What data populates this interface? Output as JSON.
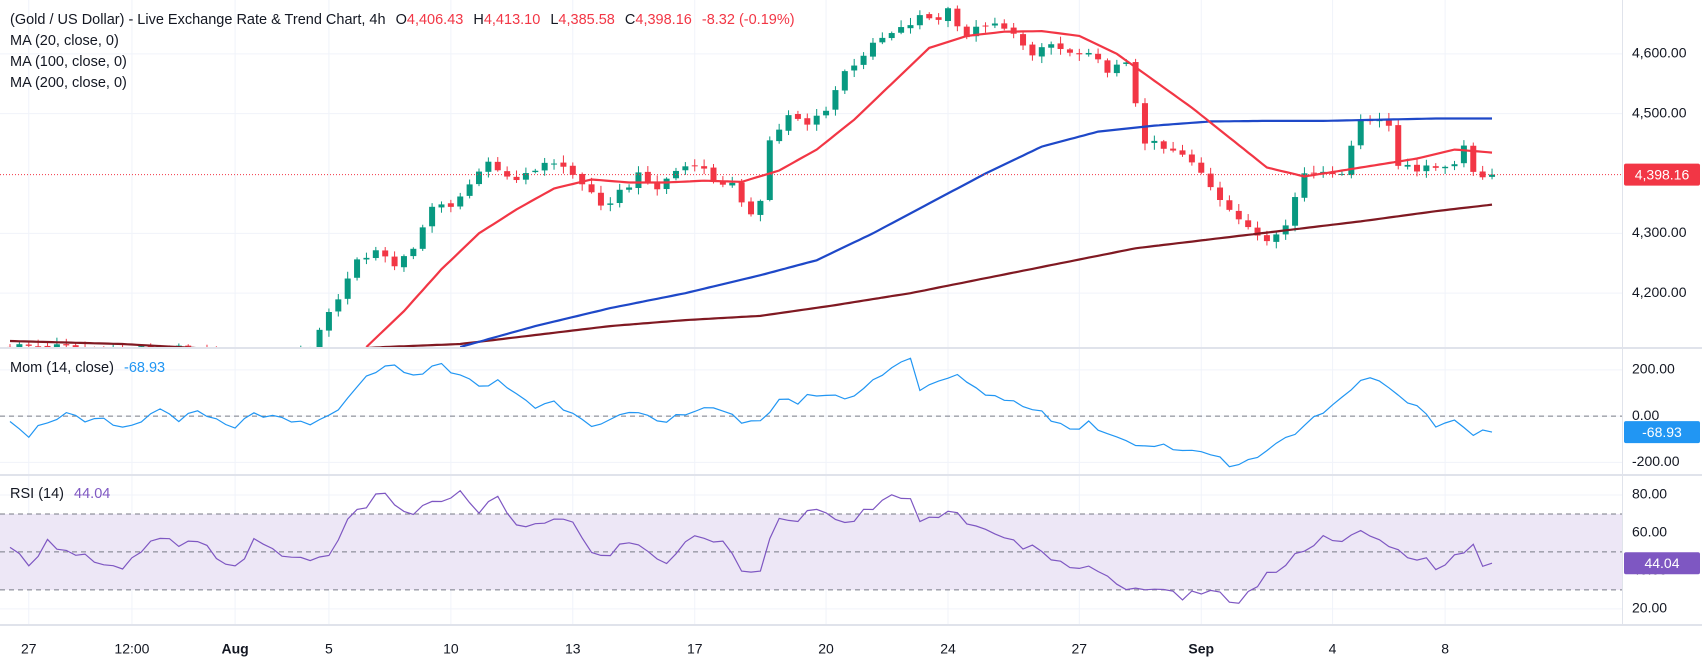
{
  "header": {
    "title": "(Gold / US Dollar) - Live Exchange Rate & Trend Chart, 4h",
    "o_label": "O",
    "o": "4,406.43",
    "h_label": "H",
    "h": "4,413.10",
    "l_label": "L",
    "l": "4,385.58",
    "c_label": "C",
    "c": "4,398.16",
    "change": "-8.32 (-0.19%)"
  },
  "legend": {
    "ma20": "MA (20, close, 0)",
    "ma100": "MA (100, close, 0)",
    "ma200": "MA (200, close, 0)",
    "mom": "Mom (14, close)",
    "mom_value": "-68.93",
    "rsi": "RSI (14)",
    "rsi_value": "44.04"
  },
  "colors": {
    "up": "#089981",
    "down": "#f23645",
    "ma20": "#f23645",
    "ma100": "#1e48c8",
    "ma200": "#801922",
    "mom": "#2196f3",
    "rsi": "#7e57c2",
    "rsi_band": "#ede7f6"
  },
  "chart_data": [
    {
      "type": "candlestick",
      "title": "(Gold / US Dollar) - Live Exchange Rate & Trend Chart, 4h",
      "ylim": [
        4110,
        4690
      ],
      "yticks": [
        "4,600.00",
        "4,500.00",
        "4,300.00",
        "4,200.00"
      ],
      "ytick_values": [
        4600,
        4500,
        4300,
        4200
      ],
      "last_price": "4,398.16",
      "last_price_value": 4398.16,
      "xticks": [
        "27",
        "12:00",
        "Aug",
        "5",
        "10",
        "13",
        "17",
        "20",
        "24",
        "27",
        "Sep",
        "4",
        "8"
      ],
      "xtick_index": [
        2,
        13,
        24,
        34,
        47,
        60,
        73,
        87,
        100,
        114,
        127,
        141,
        153
      ],
      "xtick_bold": [
        false,
        false,
        true,
        false,
        false,
        false,
        false,
        false,
        false,
        false,
        true,
        false,
        false
      ],
      "anchors": [
        [
          0,
          4112
        ],
        [
          6,
          4110
        ],
        [
          12,
          4105
        ],
        [
          18,
          4108
        ],
        [
          22,
          4098
        ],
        [
          28,
          4085
        ],
        [
          33,
          4105
        ],
        [
          34,
          4140
        ],
        [
          36,
          4195
        ],
        [
          38,
          4250
        ],
        [
          40,
          4275
        ],
        [
          42,
          4240
        ],
        [
          44,
          4280
        ],
        [
          46,
          4340
        ],
        [
          48,
          4350
        ],
        [
          50,
          4375
        ],
        [
          52,
          4420
        ],
        [
          54,
          4395
        ],
        [
          56,
          4395
        ],
        [
          58,
          4420
        ],
        [
          60,
          4410
        ],
        [
          62,
          4385
        ],
        [
          64,
          4340
        ],
        [
          66,
          4370
        ],
        [
          68,
          4395
        ],
        [
          70,
          4375
        ],
        [
          72,
          4405
        ],
        [
          74,
          4420
        ],
        [
          76,
          4390
        ],
        [
          78,
          4380
        ],
        [
          79,
          4345
        ],
        [
          80,
          4335
        ],
        [
          81,
          4360
        ],
        [
          82,
          4455
        ],
        [
          84,
          4495
        ],
        [
          86,
          4480
        ],
        [
          88,
          4510
        ],
        [
          90,
          4570
        ],
        [
          92,
          4600
        ],
        [
          94,
          4625
        ],
        [
          96,
          4640
        ],
        [
          98,
          4660
        ],
        [
          100,
          4660
        ],
        [
          101,
          4675
        ],
        [
          103,
          4630
        ],
        [
          105,
          4650
        ],
        [
          107,
          4640
        ],
        [
          109,
          4620
        ],
        [
          110,
          4595
        ],
        [
          112,
          4615
        ],
        [
          114,
          4600
        ],
        [
          116,
          4595
        ],
        [
          118,
          4575
        ],
        [
          120,
          4580
        ],
        [
          121,
          4520
        ],
        [
          122,
          4455
        ],
        [
          124,
          4440
        ],
        [
          126,
          4430
        ],
        [
          128,
          4400
        ],
        [
          130,
          4360
        ],
        [
          131,
          4345
        ],
        [
          133,
          4305
        ],
        [
          135,
          4290
        ],
        [
          137,
          4320
        ],
        [
          139,
          4400
        ],
        [
          141,
          4405
        ],
        [
          143,
          4405
        ],
        [
          144,
          4440
        ],
        [
          145,
          4495
        ],
        [
          147,
          4490
        ],
        [
          148,
          4480
        ],
        [
          149,
          4415
        ],
        [
          150,
          4420
        ],
        [
          151,
          4405
        ],
        [
          153,
          4410
        ],
        [
          155,
          4420
        ],
        [
          156,
          4440
        ],
        [
          157,
          4405
        ],
        [
          158,
          4398
        ]
      ],
      "ma20": [
        [
          38,
          4110
        ],
        [
          42,
          4170
        ],
        [
          46,
          4240
        ],
        [
          50,
          4300
        ],
        [
          54,
          4340
        ],
        [
          58,
          4375
        ],
        [
          62,
          4390
        ],
        [
          66,
          4385
        ],
        [
          70,
          4385
        ],
        [
          74,
          4388
        ],
        [
          78,
          4386
        ],
        [
          82,
          4405
        ],
        [
          86,
          4440
        ],
        [
          90,
          4490
        ],
        [
          94,
          4550
        ],
        [
          98,
          4610
        ],
        [
          102,
          4630
        ],
        [
          106,
          4637
        ],
        [
          110,
          4638
        ],
        [
          114,
          4630
        ],
        [
          118,
          4600
        ],
        [
          122,
          4555
        ],
        [
          126,
          4510
        ],
        [
          130,
          4460
        ],
        [
          134,
          4410
        ],
        [
          138,
          4395
        ],
        [
          142,
          4405
        ],
        [
          146,
          4415
        ],
        [
          150,
          4425
        ],
        [
          154,
          4440
        ],
        [
          158,
          4435
        ]
      ],
      "ma100": [
        [
          48,
          4110
        ],
        [
          56,
          4145
        ],
        [
          64,
          4175
        ],
        [
          72,
          4200
        ],
        [
          80,
          4230
        ],
        [
          86,
          4255
        ],
        [
          92,
          4300
        ],
        [
          98,
          4350
        ],
        [
          104,
          4400
        ],
        [
          110,
          4445
        ],
        [
          116,
          4470
        ],
        [
          122,
          4480
        ],
        [
          128,
          4487
        ],
        [
          134,
          4488
        ],
        [
          140,
          4488
        ],
        [
          146,
          4490
        ],
        [
          152,
          4492
        ],
        [
          158,
          4492
        ]
      ],
      "ma200": [
        [
          0,
          4120
        ],
        [
          12,
          4115
        ],
        [
          20,
          4108
        ],
        [
          24,
          4103
        ],
        [
          32,
          4103
        ],
        [
          40,
          4110
        ],
        [
          48,
          4115
        ],
        [
          56,
          4130
        ],
        [
          64,
          4145
        ],
        [
          72,
          4155
        ],
        [
          80,
          4162
        ],
        [
          88,
          4180
        ],
        [
          96,
          4200
        ],
        [
          104,
          4225
        ],
        [
          112,
          4250
        ],
        [
          120,
          4275
        ],
        [
          128,
          4290
        ],
        [
          136,
          4305
        ],
        [
          144,
          4320
        ],
        [
          152,
          4337
        ],
        [
          158,
          4348
        ]
      ]
    },
    {
      "type": "line",
      "title": "Mom (14, close)",
      "ylim": [
        -250,
        290
      ],
      "yticks": [
        "200.00",
        "0.00",
        "-200.00"
      ],
      "ytick_values": [
        200,
        0,
        -200
      ],
      "reference_lines": [
        0
      ],
      "last_value": "-68.93",
      "last_value_num": -68.93,
      "anchors": [
        [
          0,
          -10
        ],
        [
          2,
          -80
        ],
        [
          4,
          -20
        ],
        [
          6,
          10
        ],
        [
          8,
          -30
        ],
        [
          10,
          -20
        ],
        [
          12,
          -60
        ],
        [
          14,
          -20
        ],
        [
          16,
          30
        ],
        [
          18,
          -10
        ],
        [
          20,
          10
        ],
        [
          22,
          -20
        ],
        [
          24,
          -60
        ],
        [
          26,
          20
        ],
        [
          28,
          -10
        ],
        [
          30,
          -30
        ],
        [
          32,
          -40
        ],
        [
          34,
          0
        ],
        [
          36,
          70
        ],
        [
          38,
          160
        ],
        [
          40,
          230
        ],
        [
          42,
          190
        ],
        [
          44,
          190
        ],
        [
          46,
          220
        ],
        [
          48,
          180
        ],
        [
          50,
          120
        ],
        [
          52,
          150
        ],
        [
          54,
          100
        ],
        [
          56,
          40
        ],
        [
          58,
          60
        ],
        [
          60,
          20
        ],
        [
          62,
          -30
        ],
        [
          64,
          -20
        ],
        [
          66,
          10
        ],
        [
          68,
          -10
        ],
        [
          70,
          -30
        ],
        [
          72,
          20
        ],
        [
          74,
          40
        ],
        [
          76,
          30
        ],
        [
          78,
          -40
        ],
        [
          80,
          -30
        ],
        [
          82,
          80
        ],
        [
          84,
          60
        ],
        [
          86,
          100
        ],
        [
          88,
          80
        ],
        [
          90,
          90
        ],
        [
          92,
          150
        ],
        [
          94,
          220
        ],
        [
          96,
          250
        ],
        [
          97,
          120
        ],
        [
          99,
          140
        ],
        [
          101,
          180
        ],
        [
          103,
          110
        ],
        [
          105,
          90
        ],
        [
          107,
          60
        ],
        [
          109,
          40
        ],
        [
          111,
          -10
        ],
        [
          113,
          -60
        ],
        [
          115,
          -30
        ],
        [
          117,
          -70
        ],
        [
          119,
          -100
        ],
        [
          121,
          -130
        ],
        [
          123,
          -120
        ],
        [
          125,
          -160
        ],
        [
          127,
          -150
        ],
        [
          129,
          -170
        ],
        [
          130,
          -220
        ],
        [
          132,
          -190
        ],
        [
          134,
          -140
        ],
        [
          136,
          -100
        ],
        [
          138,
          -40
        ],
        [
          140,
          20
        ],
        [
          141,
          60
        ],
        [
          143,
          110
        ],
        [
          144,
          160
        ],
        [
          145,
          180
        ],
        [
          146,
          140
        ],
        [
          148,
          80
        ],
        [
          150,
          30
        ],
        [
          152,
          -40
        ],
        [
          154,
          -20
        ],
        [
          156,
          -70
        ],
        [
          158,
          -69
        ]
      ]
    },
    {
      "type": "line",
      "title": "RSI (14)",
      "ylim": [
        12,
        90
      ],
      "yticks": [
        "80.00",
        "60.00",
        "40.00",
        "20.00"
      ],
      "ytick_values": [
        80,
        60,
        40,
        20
      ],
      "band": [
        30,
        70
      ],
      "reference_lines": [
        70,
        50,
        30
      ],
      "last_value": "44.04",
      "last_value_num": 44.04,
      "anchors": [
        [
          0,
          50
        ],
        [
          2,
          45
        ],
        [
          4,
          55
        ],
        [
          6,
          52
        ],
        [
          8,
          48
        ],
        [
          10,
          42
        ],
        [
          12,
          40
        ],
        [
          14,
          50
        ],
        [
          16,
          58
        ],
        [
          18,
          52
        ],
        [
          20,
          55
        ],
        [
          22,
          48
        ],
        [
          24,
          42
        ],
        [
          26,
          55
        ],
        [
          28,
          50
        ],
        [
          30,
          48
        ],
        [
          32,
          45
        ],
        [
          34,
          50
        ],
        [
          36,
          65
        ],
        [
          38,
          75
        ],
        [
          40,
          82
        ],
        [
          42,
          70
        ],
        [
          44,
          72
        ],
        [
          46,
          78
        ],
        [
          48,
          80
        ],
        [
          50,
          72
        ],
        [
          52,
          78
        ],
        [
          54,
          62
        ],
        [
          56,
          65
        ],
        [
          58,
          68
        ],
        [
          60,
          65
        ],
        [
          62,
          48
        ],
        [
          64,
          50
        ],
        [
          66,
          55
        ],
        [
          68,
          50
        ],
        [
          70,
          45
        ],
        [
          72,
          55
        ],
        [
          74,
          58
        ],
        [
          76,
          55
        ],
        [
          78,
          40
        ],
        [
          80,
          42
        ],
        [
          82,
          70
        ],
        [
          84,
          68
        ],
        [
          86,
          72
        ],
        [
          88,
          65
        ],
        [
          90,
          68
        ],
        [
          92,
          72
        ],
        [
          94,
          78
        ],
        [
          96,
          80
        ],
        [
          97,
          65
        ],
        [
          99,
          68
        ],
        [
          101,
          72
        ],
        [
          103,
          62
        ],
        [
          105,
          58
        ],
        [
          107,
          55
        ],
        [
          109,
          52
        ],
        [
          111,
          48
        ],
        [
          113,
          40
        ],
        [
          115,
          45
        ],
        [
          117,
          38
        ],
        [
          119,
          30
        ],
        [
          121,
          28
        ],
        [
          123,
          32
        ],
        [
          125,
          26
        ],
        [
          127,
          30
        ],
        [
          129,
          28
        ],
        [
          130,
          22
        ],
        [
          132,
          28
        ],
        [
          134,
          38
        ],
        [
          136,
          45
        ],
        [
          138,
          52
        ],
        [
          140,
          58
        ],
        [
          142,
          55
        ],
        [
          144,
          60
        ],
        [
          146,
          55
        ],
        [
          148,
          50
        ],
        [
          150,
          48
        ],
        [
          152,
          42
        ],
        [
          154,
          46
        ],
        [
          156,
          52
        ],
        [
          157,
          44
        ],
        [
          158,
          44
        ]
      ]
    }
  ]
}
